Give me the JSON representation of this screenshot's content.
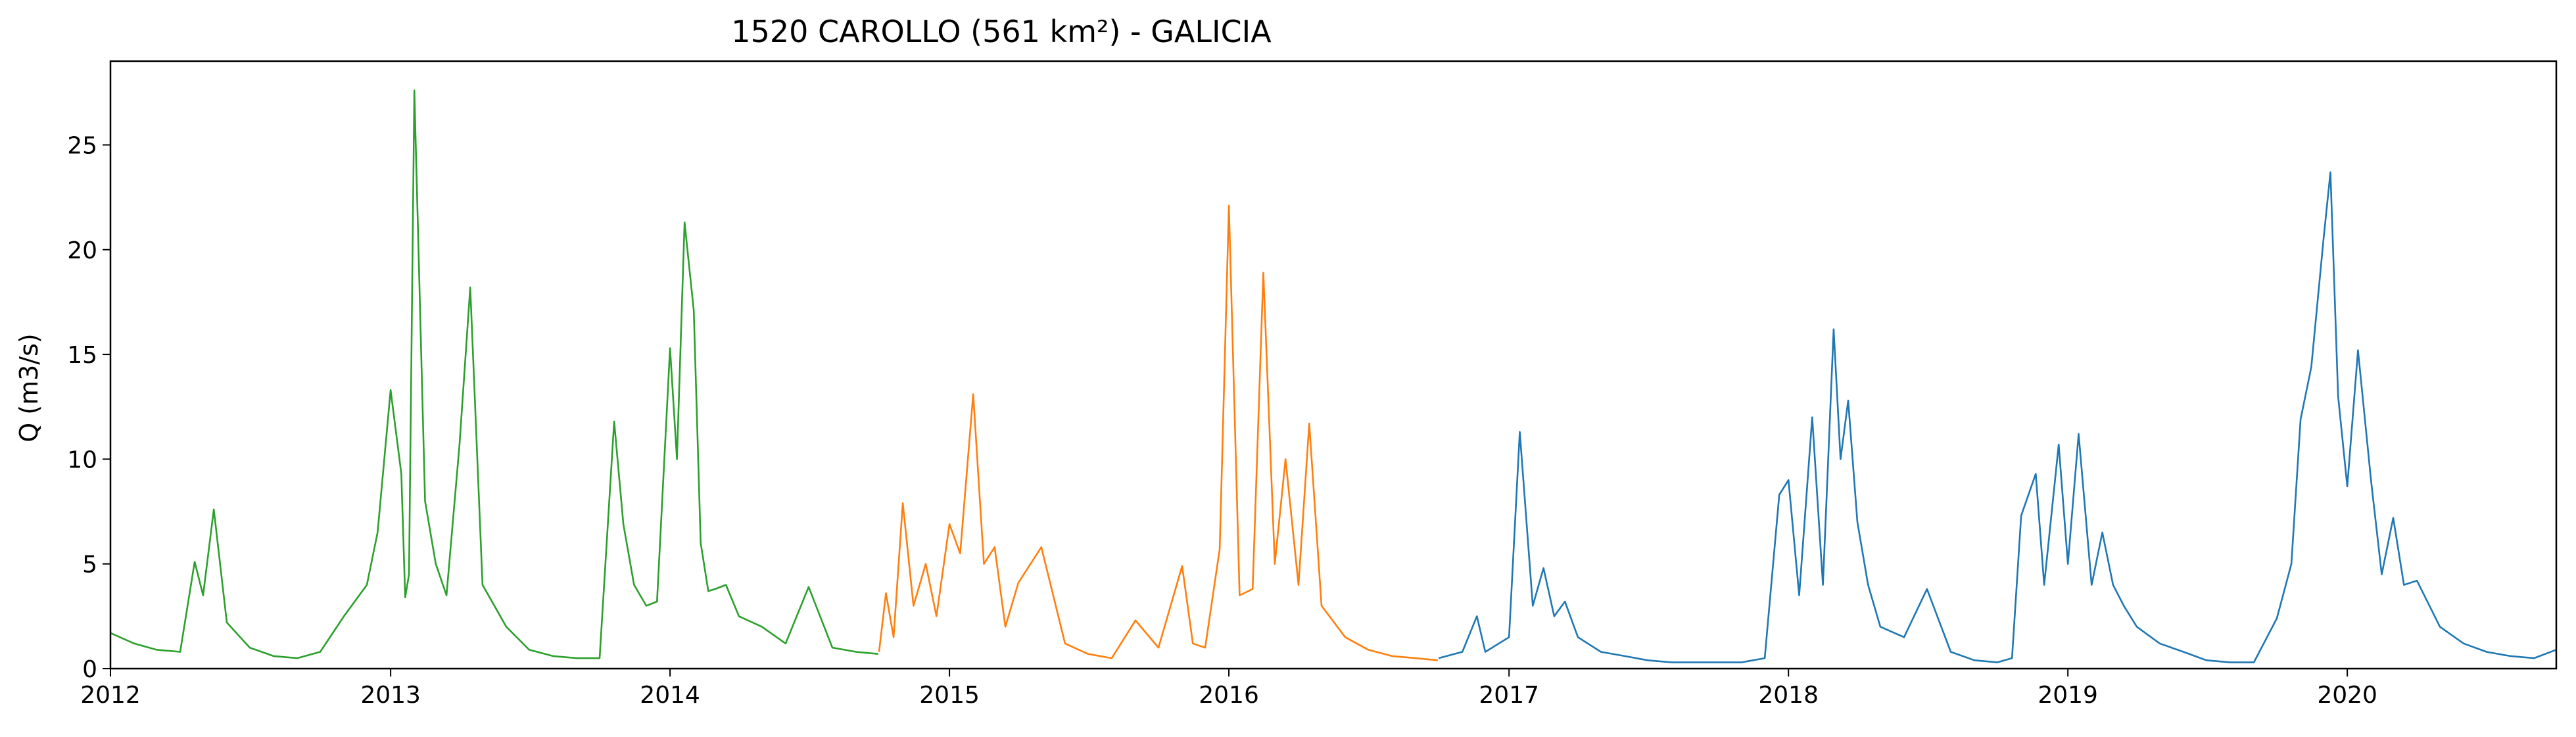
{
  "chart_data": {
    "type": "line",
    "title": "1520 CAROLLO (561 km²) - GALICIA",
    "xlabel": "",
    "ylabel": "Q (m3/s)",
    "x_tick_labels": [
      "2012",
      "2013",
      "2014",
      "2015",
      "2016",
      "2017",
      "2018",
      "2019",
      "2020"
    ],
    "y_tick_labels": [
      "0",
      "5",
      "10",
      "15",
      "20",
      "25"
    ],
    "xlim": [
      "2012-01-01",
      "2020-09-30"
    ],
    "ylim": [
      0,
      29
    ],
    "grid": false,
    "legend": "none",
    "colors": [
      "#2ca02c",
      "#ff7f0e",
      "#1f77b4"
    ],
    "series": [
      {
        "color": "#2ca02c",
        "x": [
          "2012-01-01",
          "2012-02-01",
          "2012-03-01",
          "2012-04-01",
          "2012-04-20",
          "2012-05-01",
          "2012-05-15",
          "2012-06-01",
          "2012-07-01",
          "2012-08-01",
          "2012-09-01",
          "2012-10-01",
          "2012-11-01",
          "2012-12-01",
          "2012-12-15",
          "2013-01-01",
          "2013-01-15",
          "2013-01-20",
          "2013-01-25",
          "2013-02-01",
          "2013-02-15",
          "2013-03-01",
          "2013-03-15",
          "2013-04-01",
          "2013-04-15",
          "2013-05-01",
          "2013-06-01",
          "2013-07-01",
          "2013-08-01",
          "2013-09-01",
          "2013-10-01",
          "2013-10-20",
          "2013-11-01",
          "2013-11-15",
          "2013-12-01",
          "2013-12-15",
          "2014-01-01",
          "2014-01-10",
          "2014-01-20",
          "2014-02-01",
          "2014-02-10",
          "2014-02-20",
          "2014-03-01",
          "2014-03-15",
          "2014-04-01",
          "2014-05-01",
          "2014-06-01",
          "2014-07-01",
          "2014-08-01",
          "2014-09-01",
          "2014-09-30"
        ],
        "values": [
          1.7,
          1.2,
          0.9,
          0.8,
          5.1,
          3.5,
          7.6,
          2.2,
          1.0,
          0.6,
          0.5,
          0.8,
          2.5,
          4.0,
          6.5,
          13.3,
          9.3,
          3.4,
          4.5,
          27.6,
          8.0,
          5.0,
          3.5,
          10.7,
          18.2,
          4.0,
          2.0,
          0.9,
          0.6,
          0.5,
          0.5,
          11.8,
          6.9,
          4.0,
          3.0,
          3.2,
          15.3,
          10.0,
          21.3,
          17.1,
          6.0,
          3.7,
          3.8,
          4.0,
          2.5,
          2.0,
          1.2,
          3.9,
          1.0,
          0.8,
          0.7
        ]
      },
      {
        "color": "#ff7f0e",
        "x": [
          "2014-10-01",
          "2014-10-10",
          "2014-10-20",
          "2014-11-01",
          "2014-11-15",
          "2014-12-01",
          "2014-12-15",
          "2015-01-01",
          "2015-01-15",
          "2015-02-01",
          "2015-02-15",
          "2015-03-01",
          "2015-03-15",
          "2015-04-01",
          "2015-05-01",
          "2015-06-01",
          "2015-07-01",
          "2015-08-01",
          "2015-09-01",
          "2015-10-01",
          "2015-11-01",
          "2015-11-15",
          "2015-12-01",
          "2015-12-20",
          "2016-01-01",
          "2016-01-15",
          "2016-02-01",
          "2016-02-15",
          "2016-03-01",
          "2016-03-15",
          "2016-04-01",
          "2016-04-15",
          "2016-05-01",
          "2016-06-01",
          "2016-07-01",
          "2016-08-01",
          "2016-09-01",
          "2016-09-30"
        ],
        "values": [
          0.8,
          3.6,
          1.5,
          7.9,
          3.0,
          5.0,
          2.5,
          6.9,
          5.5,
          13.1,
          5.0,
          5.8,
          2.0,
          4.1,
          5.8,
          1.2,
          0.7,
          0.5,
          2.3,
          1.0,
          4.9,
          1.2,
          1.0,
          5.7,
          22.1,
          3.5,
          3.8,
          18.9,
          5.0,
          10.0,
          4.0,
          11.7,
          3.0,
          1.5,
          0.9,
          0.6,
          0.5,
          0.4
        ]
      },
      {
        "color": "#1f77b4",
        "x": [
          "2016-10-01",
          "2016-11-01",
          "2016-11-20",
          "2016-12-01",
          "2017-01-01",
          "2017-01-15",
          "2017-02-01",
          "2017-02-15",
          "2017-03-01",
          "2017-03-15",
          "2017-04-01",
          "2017-05-01",
          "2017-06-01",
          "2017-07-01",
          "2017-08-01",
          "2017-09-01",
          "2017-10-01",
          "2017-11-01",
          "2017-12-01",
          "2017-12-20",
          "2018-01-01",
          "2018-01-15",
          "2018-02-01",
          "2018-02-15",
          "2018-03-01",
          "2018-03-10",
          "2018-03-20",
          "2018-04-01",
          "2018-04-15",
          "2018-05-01",
          "2018-06-01",
          "2018-07-01",
          "2018-08-01",
          "2018-09-01",
          "2018-10-01",
          "2018-10-20",
          "2018-11-01",
          "2018-11-20",
          "2018-12-01",
          "2018-12-20",
          "2019-01-01",
          "2019-01-15",
          "2019-02-01",
          "2019-02-15",
          "2019-03-01",
          "2019-03-15",
          "2019-04-01",
          "2019-05-01",
          "2019-06-01",
          "2019-07-01",
          "2019-08-01",
          "2019-09-01",
          "2019-10-01",
          "2019-10-20",
          "2019-11-01",
          "2019-11-15",
          "2019-12-01",
          "2019-12-10",
          "2019-12-20",
          "2020-01-01",
          "2020-01-15",
          "2020-02-01",
          "2020-02-15",
          "2020-03-01",
          "2020-03-15",
          "2020-04-01",
          "2020-05-01",
          "2020-06-01",
          "2020-07-01",
          "2020-08-01",
          "2020-09-01",
          "2020-09-30"
        ],
        "values": [
          0.5,
          0.8,
          2.5,
          0.8,
          1.5,
          11.3,
          3.0,
          4.8,
          2.5,
          3.2,
          1.5,
          0.8,
          0.6,
          0.4,
          0.3,
          0.3,
          0.3,
          0.3,
          0.5,
          8.3,
          9.0,
          3.5,
          12.0,
          4.0,
          16.2,
          10.0,
          12.8,
          7.0,
          4.0,
          2.0,
          1.5,
          3.8,
          0.8,
          0.4,
          0.3,
          0.5,
          7.3,
          9.3,
          4.0,
          10.7,
          5.0,
          11.2,
          4.0,
          6.5,
          4.0,
          3.0,
          2.0,
          1.2,
          0.8,
          0.4,
          0.3,
          0.3,
          2.4,
          5.0,
          11.9,
          14.4,
          20.5,
          23.7,
          13.0,
          8.7,
          15.2,
          9.0,
          4.5,
          7.2,
          4.0,
          4.2,
          2.0,
          1.2,
          0.8,
          0.6,
          0.5,
          0.9
        ]
      }
    ]
  }
}
